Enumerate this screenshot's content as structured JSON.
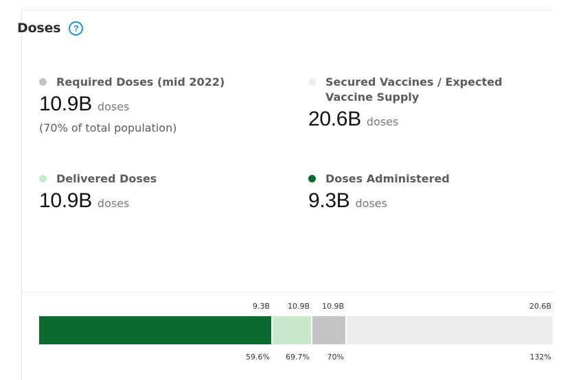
{
  "card": {
    "title": "Doses",
    "help_icon": "question-circle-icon"
  },
  "metrics": {
    "required": {
      "label": "Required Doses (mid 2022)",
      "value": "10.9B",
      "unit": "doses",
      "note": "(70% of total population)",
      "color": "#c4c4c4"
    },
    "secured": {
      "label_line1": "Secured Vaccines / Expected",
      "label_line2": "Vaccine Supply",
      "value": "20.6B",
      "unit": "doses",
      "color": "#ececec"
    },
    "delivered": {
      "label": "Delivered Doses",
      "value": "10.9B",
      "unit": "doses",
      "color": "#c8eacb"
    },
    "administered": {
      "label": "Doses Administered",
      "value": "9.3B",
      "unit": "doses",
      "color": "#0b6b2e"
    }
  },
  "bar": {
    "segments": [
      {
        "name": "administered",
        "value_label": "9.3B",
        "pct_label": "59.6%",
        "fraction": 0.4516,
        "color": "#0b6b2e"
      },
      {
        "name": "delivered",
        "value_label": "10.9B",
        "pct_label": "69.7%",
        "fraction": 0.529,
        "color": "#c8eacb"
      },
      {
        "name": "required",
        "value_label": "10.9B",
        "pct_label": "70%",
        "fraction": 0.5957,
        "color": "#c4c4c4"
      },
      {
        "name": "secured",
        "value_label": "20.6B",
        "pct_label": "132%",
        "fraction": 1.0,
        "color": "#ececec"
      }
    ]
  }
}
